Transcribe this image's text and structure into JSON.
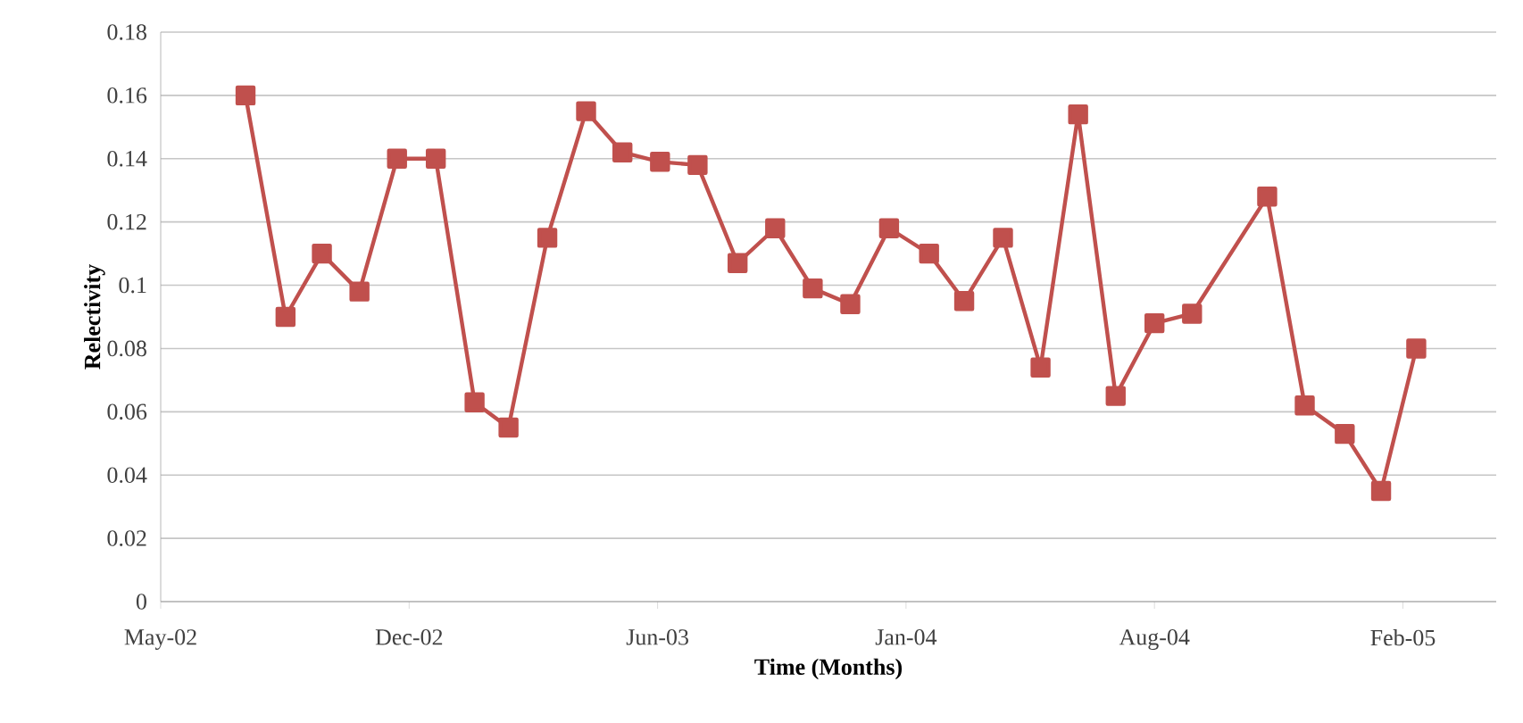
{
  "chart_data": {
    "type": "line",
    "xlabel": "Time (Months)",
    "ylabel": "Relectivity",
    "x": [
      "2002-07-19",
      "2002-08-21",
      "2002-09-20",
      "2002-10-21",
      "2002-11-21",
      "2002-12-23",
      "2003-01-24",
      "2003-02-21",
      "2003-03-25",
      "2003-04-26",
      "2003-05-26",
      "2003-06-26",
      "2003-07-27",
      "2003-08-29",
      "2003-09-29",
      "2003-10-30",
      "2003-11-30",
      "2004-01-01",
      "2004-02-03",
      "2004-03-03",
      "2004-04-04",
      "2004-05-05",
      "2004-06-05",
      "2004-07-06",
      "2004-08-07",
      "2004-09-07",
      "2004-11-08",
      "2004-12-09",
      "2005-01-11",
      "2005-02-10",
      "2005-03-11"
    ],
    "series": [
      {
        "color": "#c0504d",
        "values": [
          0.16,
          0.09,
          0.11,
          0.098,
          0.14,
          0.14,
          0.063,
          0.055,
          0.115,
          0.155,
          0.142,
          0.139,
          0.138,
          0.107,
          0.118,
          0.099,
          0.094,
          0.118,
          0.11,
          0.095,
          0.115,
          0.074,
          0.154,
          0.065,
          0.088,
          0.091,
          0.128,
          0.062,
          0.053,
          0.035,
          0.08
        ]
      }
    ],
    "xlim": [
      "2002-05-10",
      "2005-05-16"
    ],
    "xticks": [
      {
        "value": "2002-05-10",
        "label": "May-02"
      },
      {
        "value": "2002-12-01",
        "label": "Dec-02"
      },
      {
        "value": "2003-06-24",
        "label": "Jun-03"
      },
      {
        "value": "2004-01-15",
        "label": "Jan-04"
      },
      {
        "value": "2004-08-07",
        "label": "Aug-04"
      },
      {
        "value": "2005-02-28",
        "label": "Feb-05"
      }
    ],
    "ylim": [
      0,
      0.18
    ],
    "yticks": [
      0,
      0.02,
      0.04,
      0.06,
      0.08,
      0.1,
      0.12,
      0.14,
      0.16,
      0.18
    ],
    "grid": "y",
    "marker": "square",
    "line_style": "solid"
  }
}
